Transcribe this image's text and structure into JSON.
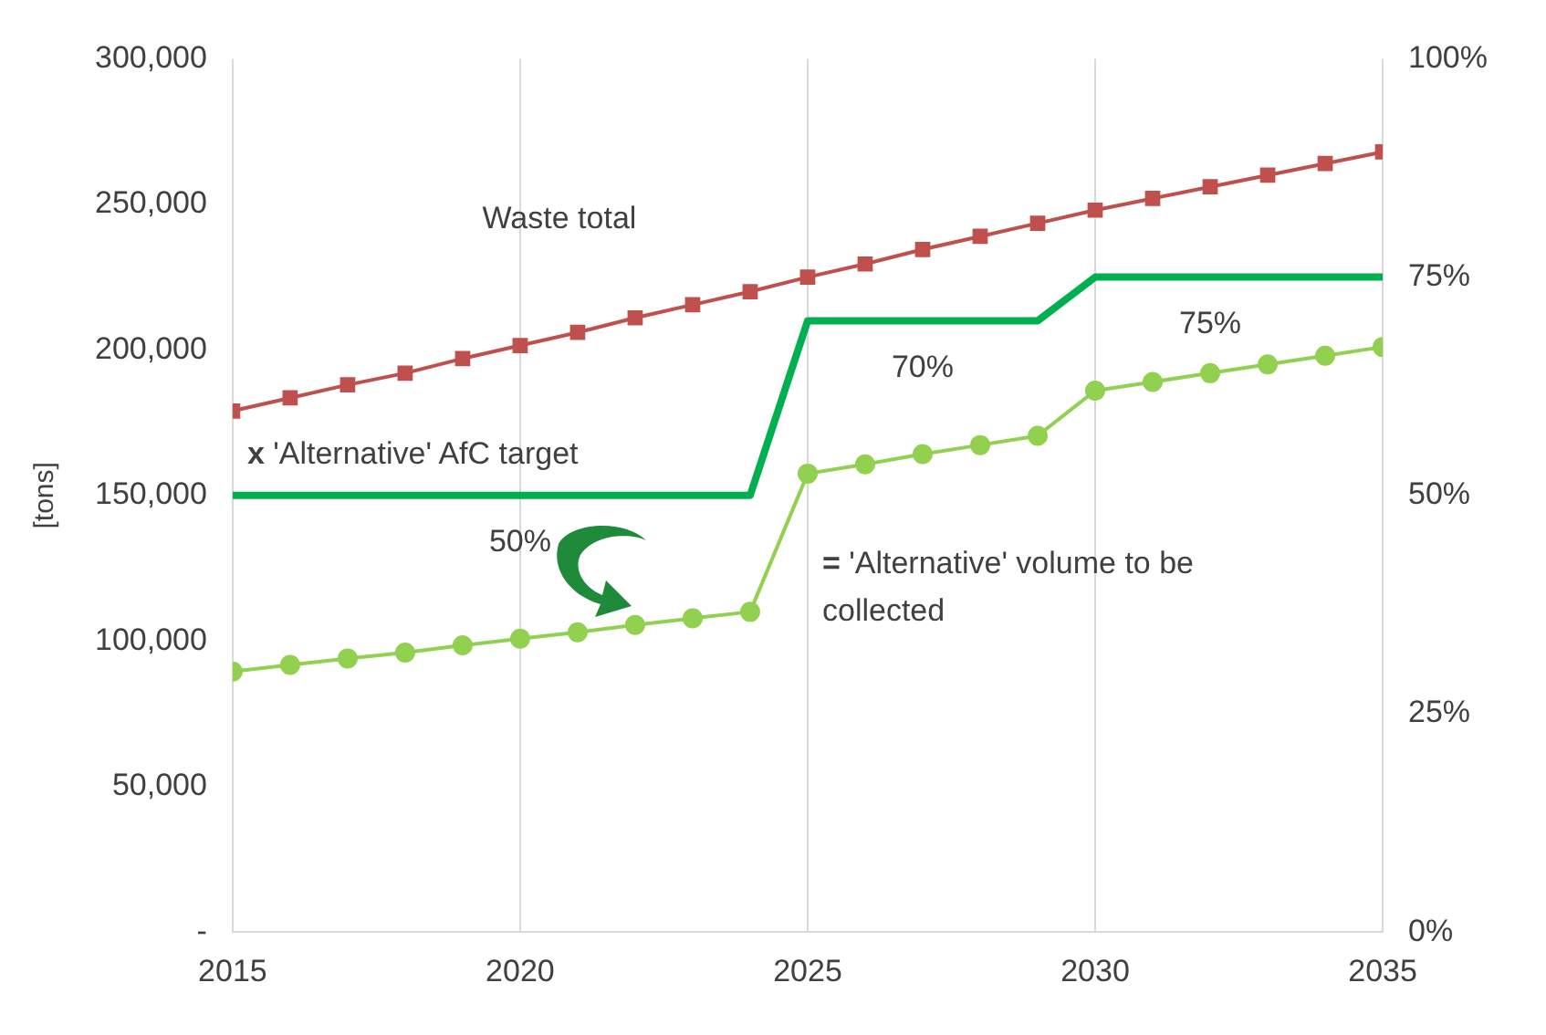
{
  "chart_data": {
    "type": "line",
    "x": [
      2015,
      2016,
      2017,
      2018,
      2019,
      2020,
      2021,
      2022,
      2023,
      2024,
      2025,
      2026,
      2027,
      2028,
      2029,
      2030,
      2031,
      2032,
      2033,
      2034,
      2035
    ],
    "series": [
      {
        "name": "Waste total",
        "color": "#c0504d",
        "marker": "square",
        "values": [
          179000,
          183500,
          188000,
          192000,
          197000,
          201500,
          206000,
          211000,
          215500,
          220000,
          225000,
          229500,
          234500,
          239000,
          243500,
          248000,
          252000,
          256000,
          260000,
          264000,
          268000
        ]
      },
      {
        "name": "x 'Alternative' AfC target",
        "color": "#00b050",
        "marker": "none",
        "axis": "y2",
        "values": [
          50,
          50,
          50,
          50,
          50,
          50,
          50,
          50,
          50,
          50,
          70,
          70,
          70,
          70,
          70,
          75,
          75,
          75,
          75,
          75,
          75
        ],
        "value_labels": [
          null,
          null,
          null,
          null,
          null,
          "50%",
          null,
          null,
          null,
          null,
          null,
          null,
          "70%",
          null,
          null,
          null,
          null,
          "75%",
          null,
          null,
          null
        ]
      },
      {
        "name": "= 'Alternative' volume to be collected",
        "color": "#92d050",
        "marker": "circle",
        "values": [
          89500,
          91800,
          94000,
          96000,
          98500,
          100800,
          103000,
          105500,
          107800,
          110000,
          157500,
          160700,
          164200,
          167300,
          170500,
          186000,
          189000,
          192000,
          195000,
          198000,
          201000
        ]
      }
    ],
    "xlim": [
      2015,
      2035
    ],
    "xticks": [
      2015,
      2020,
      2025,
      2030,
      2035
    ],
    "ylim": [
      0,
      300000
    ],
    "yticks": [
      {
        "value": 0,
        "label": "-"
      },
      {
        "value": 50000,
        "label": "50,000"
      },
      {
        "value": 100000,
        "label": "100,000"
      },
      {
        "value": 150000,
        "label": "150,000"
      },
      {
        "value": 200000,
        "label": "200,000"
      },
      {
        "value": 250000,
        "label": "250,000"
      },
      {
        "value": 300000,
        "label": "300,000"
      }
    ],
    "y2lim": [
      0,
      100
    ],
    "y2ticks": [
      {
        "value": 0,
        "label": "0%"
      },
      {
        "value": 25,
        "label": "25%"
      },
      {
        "value": 50,
        "label": "50%"
      },
      {
        "value": 75,
        "label": "75%"
      },
      {
        "value": 100,
        "label": "100%"
      }
    ],
    "ylabel": "[tons]",
    "grid": "x",
    "legend": false
  }
}
